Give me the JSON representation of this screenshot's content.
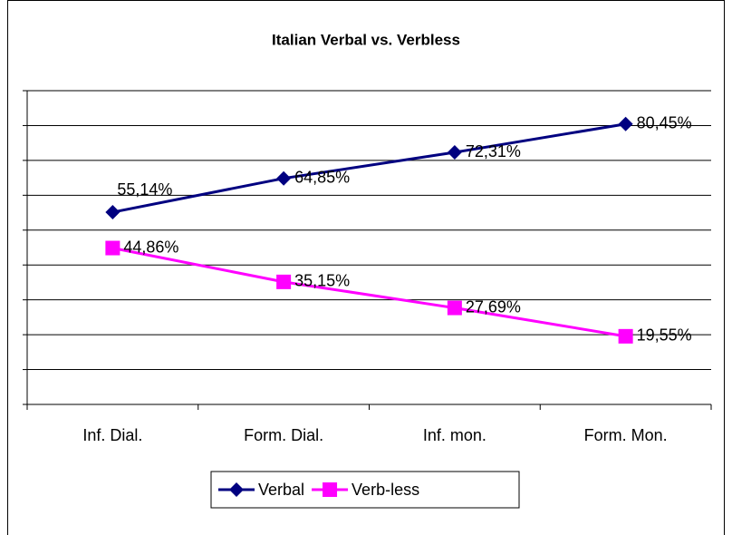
{
  "chart_data": {
    "type": "line",
    "title": "Italian Verbal  vs. Verbless",
    "categories": [
      "Inf. Dial.",
      "Form. Dial.",
      "Inf. mon.",
      "Form. Mon."
    ],
    "series": [
      {
        "name": "Verbal",
        "color": "#000080",
        "marker": "diamond",
        "values": [
          55.14,
          64.85,
          72.31,
          80.45
        ],
        "value_labels": [
          "55,14%",
          "64,85%",
          "72,31%",
          "80,45%"
        ]
      },
      {
        "name": "Verb-less",
        "color": "#ff00ff",
        "marker": "square",
        "values": [
          44.86,
          35.15,
          27.69,
          19.55
        ],
        "value_labels": [
          "44,86%",
          "35,15%",
          "27,69%",
          "19,55%"
        ]
      }
    ],
    "ylim": [
      0,
      90
    ],
    "yticks": [
      0,
      10,
      20,
      30,
      40,
      50,
      60,
      70,
      80,
      90
    ],
    "grid": true,
    "legend": "bottom"
  }
}
